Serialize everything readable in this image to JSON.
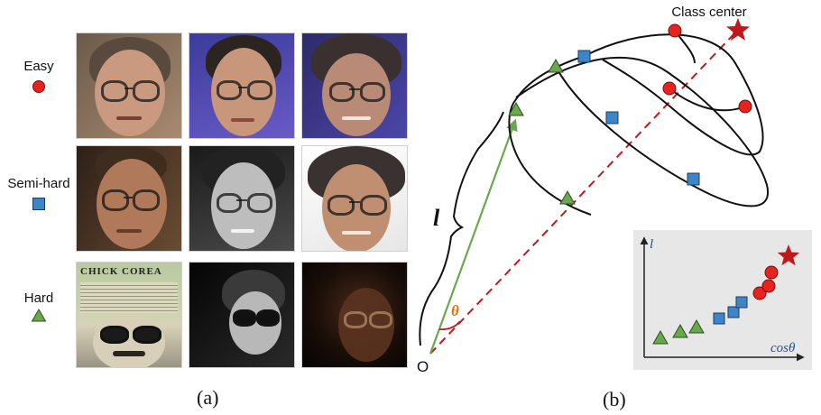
{
  "panel_a": {
    "legend": [
      {
        "label": "Easy",
        "marker": "red-circle-icon",
        "color": "#e8231f"
      },
      {
        "label": "Semi-hard",
        "marker": "blue-square-icon",
        "color": "#3d85c6"
      },
      {
        "label": "Hard",
        "marker": "green-triangle-icon",
        "color": "#6aa84f"
      }
    ],
    "caption": "(a)"
  },
  "panel_b": {
    "class_center_label": "Class center",
    "origin_label": "O",
    "length_label": "l",
    "angle_label": "θ",
    "caption": "(b)",
    "inset": {
      "y_label": "l",
      "x_label": "cosθ"
    }
  },
  "colors": {
    "easy": "#e8231f",
    "semi_hard": "#3d85c6",
    "hard": "#6aa84f",
    "center": "#c0191b",
    "angle": "#d9730d",
    "inset_bg": "#e7e7e7"
  }
}
